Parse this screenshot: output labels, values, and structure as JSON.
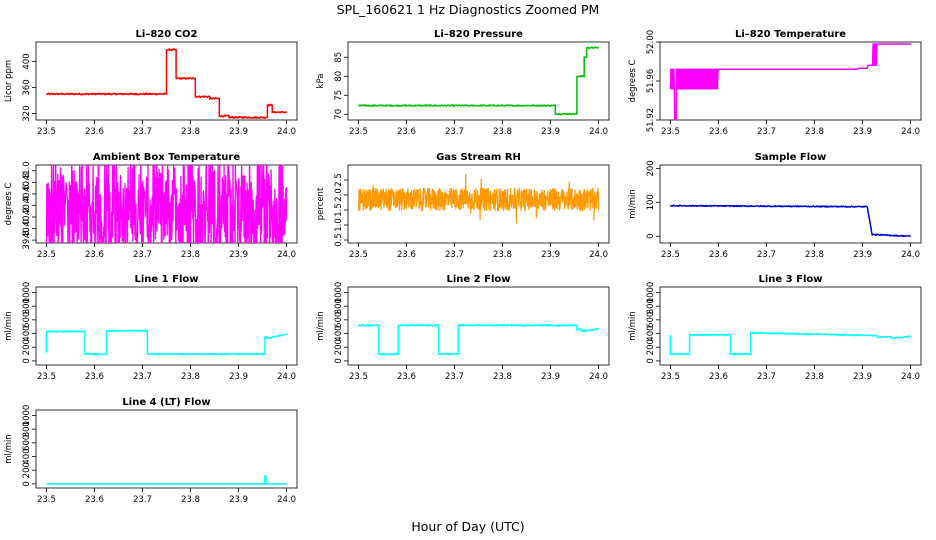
{
  "figure": {
    "title": "SPL_160621  1 Hz Diagnostics Zoomed PM",
    "xlabel": "Hour of Day (UTC)"
  },
  "chart_data": [
    {
      "type": "line",
      "title": "Li–820 CO2",
      "ylabel": "Licor ppm",
      "color": "#ff0000",
      "xlim": [
        23.5,
        24.0
      ],
      "xticks": [
        23.5,
        23.6,
        23.7,
        23.8,
        23.9,
        24.0
      ],
      "ylim": [
        310,
        430
      ],
      "yticks": [
        320,
        360,
        400
      ],
      "step": true,
      "noise": 1.2,
      "x": [
        23.5,
        23.75,
        23.75,
        23.77,
        23.77,
        23.81,
        23.81,
        23.84,
        23.84,
        23.86,
        23.86,
        23.88,
        23.88,
        23.96,
        23.96,
        23.97,
        23.97,
        24.0
      ],
      "y": [
        350,
        350,
        418,
        418,
        374,
        374,
        346,
        346,
        343,
        343,
        316,
        316,
        314,
        314,
        333,
        333,
        322,
        322
      ]
    },
    {
      "type": "line",
      "title": "Li–820 Pressure",
      "ylabel": "kPa",
      "color": "#00bb00",
      "xlim": [
        23.5,
        24.0
      ],
      "xticks": [
        23.5,
        23.6,
        23.7,
        23.8,
        23.9,
        24.0
      ],
      "ylim": [
        68.5,
        89
      ],
      "yticks": [
        70,
        75,
        80,
        85
      ],
      "step": true,
      "noise": 0.15,
      "x": [
        23.5,
        23.91,
        23.91,
        23.955,
        23.955,
        23.97,
        23.97,
        23.975,
        23.975,
        24.0
      ],
      "y": [
        72.3,
        72.3,
        70.1,
        70.1,
        80,
        80,
        85,
        85,
        87.5,
        87.5
      ]
    },
    {
      "type": "line",
      "title": "Li–820 Temperature",
      "ylabel": "degrees C",
      "color": "#ff00ff",
      "xlim": [
        23.5,
        24.0
      ],
      "xticks": [
        23.5,
        23.6,
        23.7,
        23.8,
        23.9,
        24.0
      ],
      "ylim": [
        51.92,
        52.0
      ],
      "yticks": [
        51.92,
        51.96,
        52.0
      ],
      "step": true,
      "noise": 0,
      "x": [
        23.5,
        23.89,
        23.89,
        23.91,
        23.91,
        23.93,
        23.93,
        24.0
      ],
      "y": [
        51.972,
        51.972,
        51.973,
        51.973,
        51.976,
        51.976,
        51.998,
        51.998
      ]
    },
    {
      "type": "line",
      "title": "Ambient Box Temperature",
      "ylabel": "degrees C",
      "color": "#ff00ff",
      "xlim": [
        23.5,
        24.0
      ],
      "xticks": [
        23.5,
        23.6,
        23.7,
        23.8,
        23.9,
        24.0
      ],
      "ylim": [
        39.75,
        41.1
      ],
      "yticks": [
        39.8,
        40.0,
        40.2,
        40.4,
        40.6,
        40.8,
        41.0
      ],
      "step": false,
      "noise": 0,
      "x": [
        23.5,
        24.0
      ],
      "y": [
        40.3,
        40.3
      ]
    },
    {
      "type": "line",
      "title": "Gas Stream RH",
      "ylabel": "percent",
      "color": "#ff9900",
      "xlim": [
        23.5,
        24.0
      ],
      "xticks": [
        23.5,
        23.6,
        23.7,
        23.8,
        23.9,
        24.0
      ],
      "ylim": [
        0.4,
        3.0
      ],
      "yticks": [
        0.5,
        1.0,
        1.5,
        2.0,
        2.5
      ],
      "step": false,
      "noise": 0,
      "x": [
        23.5,
        24.0
      ],
      "y": [
        1.85,
        1.85
      ]
    },
    {
      "type": "line",
      "title": "Sample Flow",
      "ylabel": "ml/min",
      "color": "#0000cc",
      "xlim": [
        23.5,
        24.0
      ],
      "xticks": [
        23.5,
        23.6,
        23.7,
        23.8,
        23.9,
        24.0
      ],
      "ylim": [
        -20,
        210
      ],
      "yticks": [
        0,
        100,
        200
      ],
      "step": true,
      "noise": 1.5,
      "x": [
        23.5,
        23.91,
        23.91,
        23.92,
        23.92,
        24.0
      ],
      "y": [
        90,
        87,
        87,
        5,
        5,
        0
      ]
    },
    {
      "type": "line",
      "title": "Line 1 Flow",
      "ylabel": "ml/min",
      "color": "#00ffff",
      "xlim": [
        23.5,
        24.0
      ],
      "xticks": [
        23.5,
        23.6,
        23.7,
        23.8,
        23.9,
        24.0
      ],
      "ylim": [
        -60,
        1080
      ],
      "yticks": [
        0,
        200,
        400,
        600,
        800,
        1000
      ],
      "step": true,
      "noise": 8,
      "x": [
        23.5,
        23.5,
        23.58,
        23.58,
        23.625,
        23.625,
        23.71,
        23.71,
        23.955,
        23.955,
        23.96,
        23.96,
        24.0
      ],
      "y": [
        120,
        430,
        430,
        100,
        100,
        440,
        440,
        100,
        100,
        350,
        350,
        330,
        390
      ]
    },
    {
      "type": "line",
      "title": "Line 2 Flow",
      "ylabel": "ml/min",
      "color": "#00ffff",
      "xlim": [
        23.5,
        24.0
      ],
      "xticks": [
        23.5,
        23.6,
        23.7,
        23.8,
        23.9,
        24.0
      ],
      "ylim": [
        -60,
        1080
      ],
      "yticks": [
        0,
        200,
        400,
        600,
        800,
        1000
      ],
      "step": true,
      "noise": 10,
      "x": [
        23.5,
        23.542,
        23.542,
        23.583,
        23.583,
        23.667,
        23.667,
        23.708,
        23.708,
        23.955,
        23.955,
        23.965,
        23.965,
        24.0
      ],
      "y": [
        520,
        520,
        100,
        100,
        520,
        520,
        100,
        100,
        520,
        520,
        460,
        460,
        430,
        470
      ]
    },
    {
      "type": "line",
      "title": "Line 3 Flow",
      "ylabel": "ml/min",
      "color": "#00ffff",
      "xlim": [
        23.5,
        24.0
      ],
      "xticks": [
        23.5,
        23.6,
        23.7,
        23.8,
        23.9,
        24.0
      ],
      "ylim": [
        -60,
        1080
      ],
      "yticks": [
        0,
        200,
        400,
        600,
        800,
        1000
      ],
      "step": true,
      "noise": 8,
      "x": [
        23.5,
        23.5,
        23.54,
        23.54,
        23.625,
        23.625,
        23.667,
        23.667,
        23.93,
        23.93,
        23.96,
        23.96,
        24.0
      ],
      "y": [
        380,
        100,
        100,
        380,
        380,
        100,
        100,
        410,
        370,
        350,
        350,
        330,
        360
      ]
    },
    {
      "type": "line",
      "title": "Line 4 (LT) Flow",
      "ylabel": "ml/min",
      "color": "#00ffff",
      "xlim": [
        23.5,
        24.0
      ],
      "xticks": [
        23.5,
        23.6,
        23.7,
        23.8,
        23.9,
        24.0
      ],
      "ylim": [
        -60,
        1080
      ],
      "yticks": [
        0,
        200,
        400,
        600,
        800,
        1000
      ],
      "step": true,
      "noise": 0,
      "x": [
        23.5,
        23.955,
        23.955,
        23.957,
        23.957,
        24.0
      ],
      "y": [
        0,
        0,
        120,
        120,
        0,
        0
      ]
    }
  ]
}
